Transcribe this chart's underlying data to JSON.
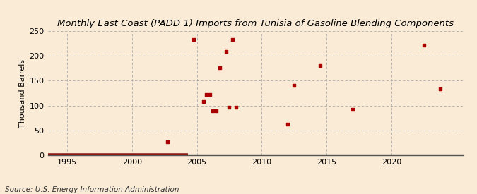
{
  "title": "Monthly East Coast (PADD 1) Imports from Tunisia of Gasoline Blending Components",
  "ylabel": "Thousand Barrels",
  "source": "Source: U.S. Energy Information Administration",
  "background_color": "#faebd7",
  "scatter_color": "#aa0000",
  "xlim": [
    1993.5,
    2025.5
  ],
  "ylim": [
    0,
    250
  ],
  "yticks": [
    0,
    50,
    100,
    150,
    200,
    250
  ],
  "xticks": [
    1995,
    2000,
    2005,
    2010,
    2015,
    2020
  ],
  "data_points": [
    [
      2002.75,
      27
    ],
    [
      2004.75,
      233
    ],
    [
      2005.5,
      108
    ],
    [
      2005.75,
      122
    ],
    [
      2006.0,
      122
    ],
    [
      2006.25,
      90
    ],
    [
      2006.5,
      90
    ],
    [
      2006.75,
      176
    ],
    [
      2007.25,
      209
    ],
    [
      2007.5,
      96
    ],
    [
      2007.75,
      233
    ],
    [
      2008.0,
      97
    ],
    [
      2012.0,
      62
    ],
    [
      2012.5,
      141
    ],
    [
      2014.5,
      181
    ],
    [
      2017.0,
      93
    ],
    [
      2022.5,
      221
    ],
    [
      2023.75,
      133
    ]
  ],
  "baseline_start": 1993.5,
  "baseline_end": 2004.3,
  "title_fontsize": 9.5,
  "axis_fontsize": 8,
  "source_fontsize": 7.5
}
